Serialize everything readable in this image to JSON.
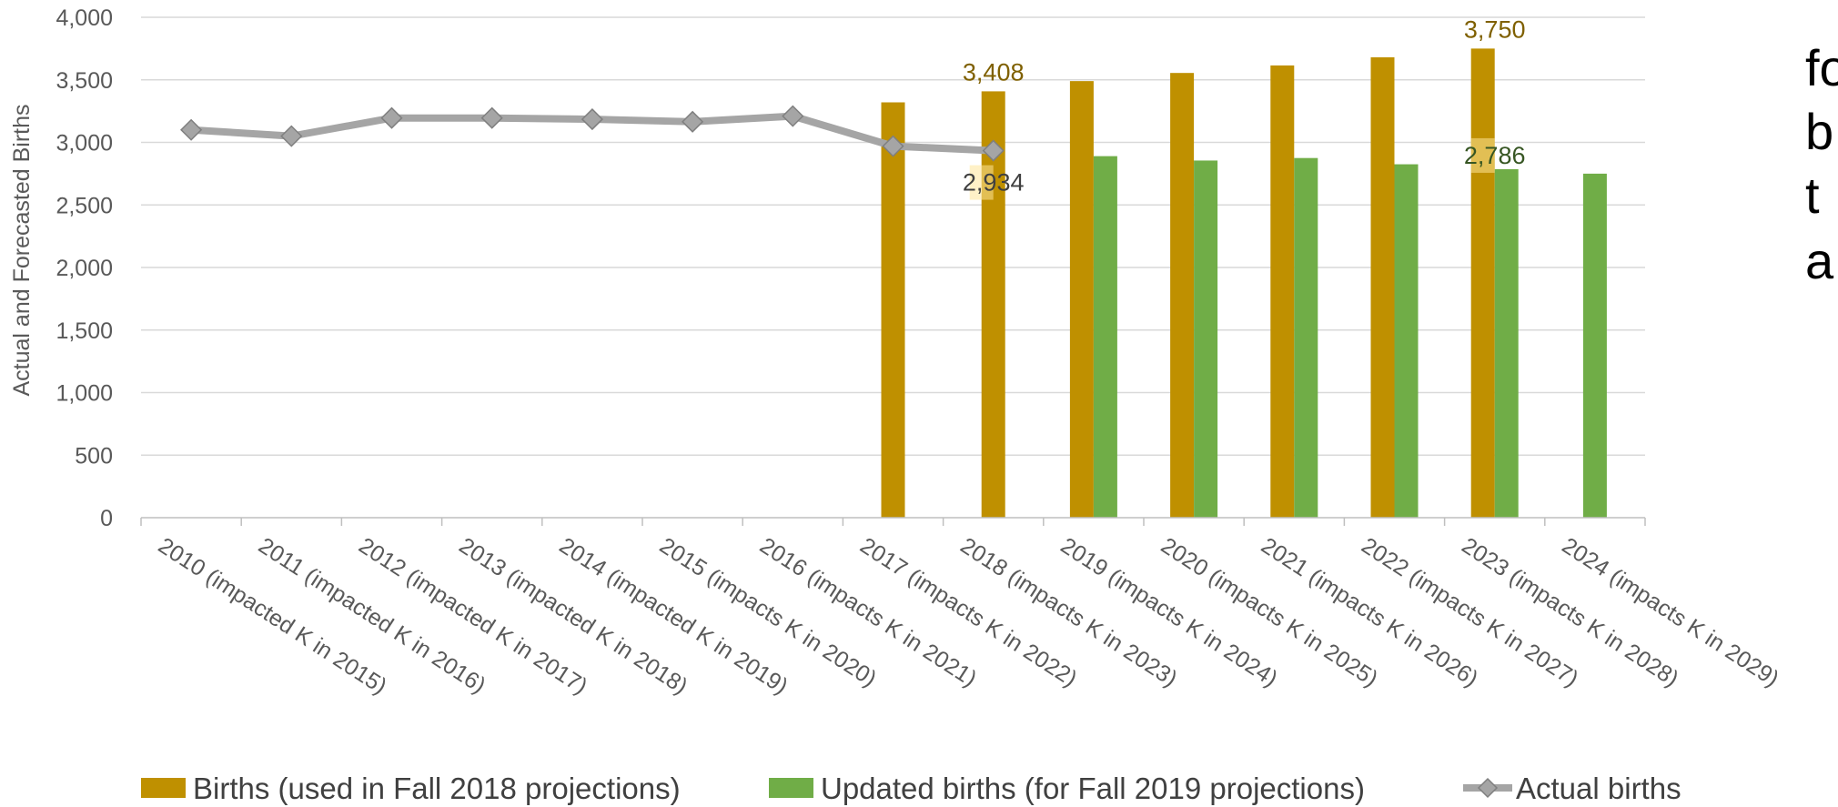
{
  "chart_data": {
    "type": "bar",
    "ylabel": "Actual and Forecasted Births",
    "ylim": [
      0,
      4000
    ],
    "yticks": [
      "0",
      "500",
      "1,000",
      "1,500",
      "2,000",
      "2,500",
      "3,000",
      "3,500",
      "4,000"
    ],
    "categories": [
      "2010 (impacted K in 2015)",
      "2011 (impacted K in 2016)",
      "2012  (impacted K in 2017)",
      "2013 (impacted K in 2018)",
      "2014 (impacted K in 2019)",
      "2015 (impacts K in 2020)",
      "2016 (impacts K in 2021)",
      "2017 (impacts K in 2022)",
      "2018 (impacts K in 2023)",
      "2019 (impacts K in 2024)",
      "2020 (impacts K in 2025)",
      "2021 (impacts K in 2026)",
      "2022 (impacts K in 2027)",
      "2023 (impacts K in 2028)",
      "2024 (impacts K in 2029)"
    ],
    "series": [
      {
        "name": "Births (used in Fall 2018 projections)",
        "kind": "bar",
        "color": "#BF9000",
        "values": [
          null,
          null,
          null,
          null,
          null,
          null,
          null,
          3320,
          3408,
          3490,
          3555,
          3615,
          3680,
          3750,
          null
        ]
      },
      {
        "name": "Updated births (for Fall 2019 projections)",
        "kind": "bar",
        "color": "#70AD47",
        "values": [
          null,
          null,
          null,
          null,
          null,
          null,
          null,
          null,
          null,
          2890,
          2855,
          2875,
          2825,
          2786,
          2750
        ]
      },
      {
        "name": "Actual births",
        "kind": "line",
        "color": "#A5A5A5",
        "values": [
          3100,
          3050,
          3195,
          3195,
          3185,
          3165,
          3210,
          2970,
          2934,
          null,
          null,
          null,
          null,
          null,
          null
        ]
      }
    ],
    "data_labels": [
      {
        "series": 0,
        "index": 8,
        "text": "3,408",
        "color": "#7F6000"
      },
      {
        "series": 0,
        "index": 13,
        "text": "3,750",
        "color": "#7F6000"
      },
      {
        "series": 2,
        "index": 8,
        "text": "2,934",
        "color": "#404040"
      },
      {
        "series": 1,
        "index": 13,
        "text": "2,786",
        "color": "#375623"
      }
    ],
    "legend_position": "bottom",
    "grid": true
  },
  "side_text": [
    "fo",
    "b",
    "t",
    "a"
  ]
}
